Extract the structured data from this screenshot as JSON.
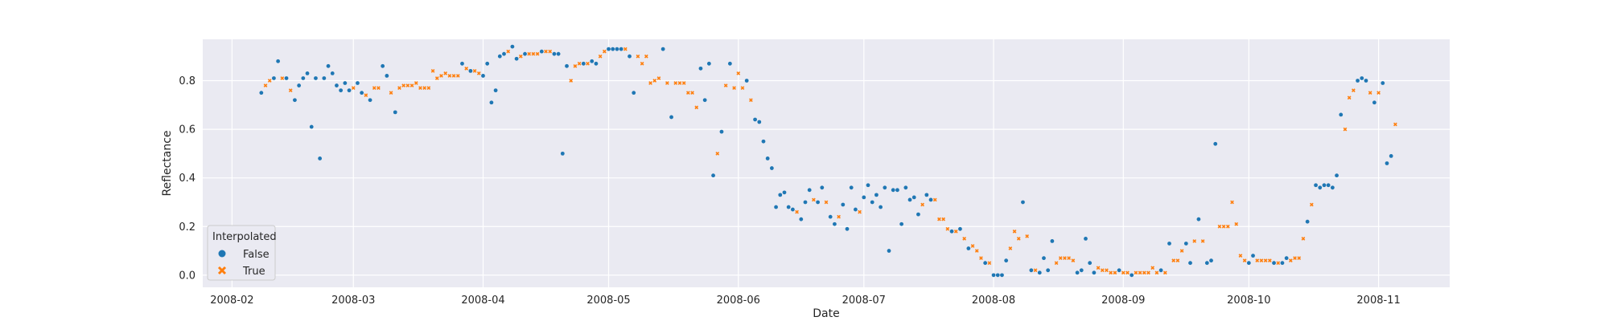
{
  "chart_data": {
    "type": "scatter",
    "xlabel": "Date",
    "ylabel": "Reflectance",
    "xlim": [
      "2008-01-25",
      "2008-11-18"
    ],
    "ylim": [
      -0.05,
      0.97
    ],
    "x_ticks": [
      "2008-02-01",
      "2008-03-01",
      "2008-04-01",
      "2008-05-01",
      "2008-06-01",
      "2008-07-01",
      "2008-08-01",
      "2008-09-01",
      "2008-10-01",
      "2008-11-01"
    ],
    "x_tick_labels": [
      "2008-02",
      "2008-03",
      "2008-04",
      "2008-05",
      "2008-06",
      "2008-07",
      "2008-08",
      "2008-09",
      "2008-10",
      "2008-11"
    ],
    "y_ticks": [
      0.0,
      0.2,
      0.4,
      0.6,
      0.8
    ],
    "y_tick_labels": [
      "0.0",
      "0.2",
      "0.4",
      "0.6",
      "0.8"
    ],
    "grid": true,
    "background": "#eaeaf2",
    "legend": {
      "title": "Interpolated",
      "placement": "lower-left",
      "entries": [
        {
          "label": "False",
          "marker": "circle",
          "color": "#1f77b4"
        },
        {
          "label": "True",
          "marker": "x",
          "color": "#ff7f0e"
        }
      ]
    },
    "series": [
      {
        "name": "False",
        "color": "#1f77b4",
        "marker": "circle",
        "points": [
          [
            "2008-02-08",
            0.75
          ],
          [
            "2008-02-11",
            0.81
          ],
          [
            "2008-02-12",
            0.88
          ],
          [
            "2008-02-14",
            0.81
          ],
          [
            "2008-02-16",
            0.72
          ],
          [
            "2008-02-17",
            0.78
          ],
          [
            "2008-02-18",
            0.81
          ],
          [
            "2008-02-19",
            0.83
          ],
          [
            "2008-02-20",
            0.61
          ],
          [
            "2008-02-21",
            0.81
          ],
          [
            "2008-02-22",
            0.48
          ],
          [
            "2008-02-23",
            0.81
          ],
          [
            "2008-02-24",
            0.86
          ],
          [
            "2008-02-25",
            0.83
          ],
          [
            "2008-02-26",
            0.78
          ],
          [
            "2008-02-27",
            0.76
          ],
          [
            "2008-02-28",
            0.79
          ],
          [
            "2008-02-29",
            0.76
          ],
          [
            "2008-03-02",
            0.79
          ],
          [
            "2008-03-03",
            0.75
          ],
          [
            "2008-03-05",
            0.72
          ],
          [
            "2008-03-08",
            0.86
          ],
          [
            "2008-03-09",
            0.82
          ],
          [
            "2008-03-11",
            0.67
          ],
          [
            "2008-03-27",
            0.87
          ],
          [
            "2008-03-29",
            0.84
          ],
          [
            "2008-04-01",
            0.82
          ],
          [
            "2008-04-02",
            0.87
          ],
          [
            "2008-04-03",
            0.71
          ],
          [
            "2008-04-04",
            0.76
          ],
          [
            "2008-04-05",
            0.9
          ],
          [
            "2008-04-06",
            0.91
          ],
          [
            "2008-04-08",
            0.94
          ],
          [
            "2008-04-09",
            0.89
          ],
          [
            "2008-04-11",
            0.91
          ],
          [
            "2008-04-15",
            0.92
          ],
          [
            "2008-04-18",
            0.91
          ],
          [
            "2008-04-19",
            0.91
          ],
          [
            "2008-04-20",
            0.5
          ],
          [
            "2008-04-21",
            0.86
          ],
          [
            "2008-04-25",
            0.87
          ],
          [
            "2008-04-27",
            0.88
          ],
          [
            "2008-04-28",
            0.87
          ],
          [
            "2008-05-01",
            0.93
          ],
          [
            "2008-05-02",
            0.93
          ],
          [
            "2008-05-03",
            0.93
          ],
          [
            "2008-05-04",
            0.93
          ],
          [
            "2008-05-06",
            0.9
          ],
          [
            "2008-05-07",
            0.75
          ],
          [
            "2008-05-14",
            0.93
          ],
          [
            "2008-05-16",
            0.65
          ],
          [
            "2008-05-23",
            0.85
          ],
          [
            "2008-05-24",
            0.72
          ],
          [
            "2008-05-25",
            0.87
          ],
          [
            "2008-05-26",
            0.41
          ],
          [
            "2008-05-28",
            0.59
          ],
          [
            "2008-05-30",
            0.87
          ],
          [
            "2008-06-03",
            0.8
          ],
          [
            "2008-06-05",
            0.64
          ],
          [
            "2008-06-06",
            0.63
          ],
          [
            "2008-06-07",
            0.55
          ],
          [
            "2008-06-08",
            0.48
          ],
          [
            "2008-06-09",
            0.44
          ],
          [
            "2008-06-10",
            0.28
          ],
          [
            "2008-06-11",
            0.33
          ],
          [
            "2008-06-12",
            0.34
          ],
          [
            "2008-06-13",
            0.28
          ],
          [
            "2008-06-14",
            0.27
          ],
          [
            "2008-06-16",
            0.23
          ],
          [
            "2008-06-17",
            0.3
          ],
          [
            "2008-06-18",
            0.35
          ],
          [
            "2008-06-20",
            0.3
          ],
          [
            "2008-06-21",
            0.36
          ],
          [
            "2008-06-23",
            0.24
          ],
          [
            "2008-06-24",
            0.21
          ],
          [
            "2008-06-26",
            0.29
          ],
          [
            "2008-06-27",
            0.19
          ],
          [
            "2008-06-28",
            0.36
          ],
          [
            "2008-06-29",
            0.27
          ],
          [
            "2008-07-01",
            0.32
          ],
          [
            "2008-07-02",
            0.37
          ],
          [
            "2008-07-03",
            0.3
          ],
          [
            "2008-07-04",
            0.33
          ],
          [
            "2008-07-05",
            0.28
          ],
          [
            "2008-07-06",
            0.36
          ],
          [
            "2008-07-07",
            0.1
          ],
          [
            "2008-07-08",
            0.35
          ],
          [
            "2008-07-09",
            0.35
          ],
          [
            "2008-07-10",
            0.21
          ],
          [
            "2008-07-11",
            0.36
          ],
          [
            "2008-07-12",
            0.31
          ],
          [
            "2008-07-13",
            0.32
          ],
          [
            "2008-07-14",
            0.25
          ],
          [
            "2008-07-16",
            0.33
          ],
          [
            "2008-07-17",
            0.31
          ],
          [
            "2008-07-22",
            0.18
          ],
          [
            "2008-07-24",
            0.19
          ],
          [
            "2008-07-26",
            0.11
          ],
          [
            "2008-07-30",
            0.05
          ],
          [
            "2008-08-01",
            0.0
          ],
          [
            "2008-08-02",
            0.0
          ],
          [
            "2008-08-03",
            0.0
          ],
          [
            "2008-08-04",
            0.06
          ],
          [
            "2008-08-08",
            0.3
          ],
          [
            "2008-08-10",
            0.02
          ],
          [
            "2008-08-12",
            0.01
          ],
          [
            "2008-08-13",
            0.07
          ],
          [
            "2008-08-14",
            0.02
          ],
          [
            "2008-08-15",
            0.14
          ],
          [
            "2008-08-21",
            0.01
          ],
          [
            "2008-08-22",
            0.02
          ],
          [
            "2008-08-23",
            0.15
          ],
          [
            "2008-08-24",
            0.05
          ],
          [
            "2008-08-25",
            0.01
          ],
          [
            "2008-08-31",
            0.02
          ],
          [
            "2008-09-03",
            0.0
          ],
          [
            "2008-09-10",
            0.02
          ],
          [
            "2008-09-12",
            0.13
          ],
          [
            "2008-09-16",
            0.13
          ],
          [
            "2008-09-17",
            0.05
          ],
          [
            "2008-09-19",
            0.23
          ],
          [
            "2008-09-21",
            0.05
          ],
          [
            "2008-09-22",
            0.06
          ],
          [
            "2008-09-23",
            0.54
          ],
          [
            "2008-10-01",
            0.05
          ],
          [
            "2008-10-02",
            0.08
          ],
          [
            "2008-10-07",
            0.05
          ],
          [
            "2008-10-09",
            0.05
          ],
          [
            "2008-10-10",
            0.07
          ],
          [
            "2008-10-15",
            0.22
          ],
          [
            "2008-10-17",
            0.37
          ],
          [
            "2008-10-18",
            0.36
          ],
          [
            "2008-10-19",
            0.37
          ],
          [
            "2008-10-20",
            0.37
          ],
          [
            "2008-10-21",
            0.36
          ],
          [
            "2008-10-22",
            0.41
          ],
          [
            "2008-10-23",
            0.66
          ],
          [
            "2008-10-27",
            0.8
          ],
          [
            "2008-10-28",
            0.81
          ],
          [
            "2008-10-29",
            0.8
          ],
          [
            "2008-10-31",
            0.71
          ],
          [
            "2008-11-02",
            0.79
          ],
          [
            "2008-11-03",
            0.46
          ],
          [
            "2008-11-04",
            0.49
          ]
        ]
      },
      {
        "name": "True",
        "color": "#ff7f0e",
        "marker": "x",
        "points": [
          [
            "2008-02-09",
            0.78
          ],
          [
            "2008-02-10",
            0.8
          ],
          [
            "2008-02-13",
            0.81
          ],
          [
            "2008-02-15",
            0.76
          ],
          [
            "2008-03-01",
            0.77
          ],
          [
            "2008-03-04",
            0.74
          ],
          [
            "2008-03-06",
            0.77
          ],
          [
            "2008-03-07",
            0.77
          ],
          [
            "2008-03-10",
            0.75
          ],
          [
            "2008-03-12",
            0.77
          ],
          [
            "2008-03-13",
            0.78
          ],
          [
            "2008-03-14",
            0.78
          ],
          [
            "2008-03-15",
            0.78
          ],
          [
            "2008-03-16",
            0.79
          ],
          [
            "2008-03-17",
            0.77
          ],
          [
            "2008-03-18",
            0.77
          ],
          [
            "2008-03-19",
            0.77
          ],
          [
            "2008-03-20",
            0.84
          ],
          [
            "2008-03-21",
            0.81
          ],
          [
            "2008-03-22",
            0.82
          ],
          [
            "2008-03-23",
            0.83
          ],
          [
            "2008-03-24",
            0.82
          ],
          [
            "2008-03-25",
            0.82
          ],
          [
            "2008-03-26",
            0.82
          ],
          [
            "2008-03-28",
            0.85
          ],
          [
            "2008-03-30",
            0.84
          ],
          [
            "2008-03-31",
            0.83
          ],
          [
            "2008-04-07",
            0.92
          ],
          [
            "2008-04-10",
            0.9
          ],
          [
            "2008-04-12",
            0.91
          ],
          [
            "2008-04-13",
            0.91
          ],
          [
            "2008-04-14",
            0.91
          ],
          [
            "2008-04-16",
            0.92
          ],
          [
            "2008-04-17",
            0.92
          ],
          [
            "2008-04-22",
            0.8
          ],
          [
            "2008-04-23",
            0.86
          ],
          [
            "2008-04-24",
            0.87
          ],
          [
            "2008-04-26",
            0.87
          ],
          [
            "2008-04-29",
            0.9
          ],
          [
            "2008-04-30",
            0.92
          ],
          [
            "2008-05-05",
            0.93
          ],
          [
            "2008-05-08",
            0.9
          ],
          [
            "2008-05-09",
            0.87
          ],
          [
            "2008-05-10",
            0.9
          ],
          [
            "2008-05-11",
            0.79
          ],
          [
            "2008-05-12",
            0.8
          ],
          [
            "2008-05-13",
            0.81
          ],
          [
            "2008-05-15",
            0.79
          ],
          [
            "2008-05-17",
            0.79
          ],
          [
            "2008-05-18",
            0.79
          ],
          [
            "2008-05-19",
            0.79
          ],
          [
            "2008-05-20",
            0.75
          ],
          [
            "2008-05-21",
            0.75
          ],
          [
            "2008-05-22",
            0.69
          ],
          [
            "2008-05-27",
            0.5
          ],
          [
            "2008-05-29",
            0.78
          ],
          [
            "2008-05-31",
            0.77
          ],
          [
            "2008-06-01",
            0.83
          ],
          [
            "2008-06-02",
            0.77
          ],
          [
            "2008-06-04",
            0.72
          ],
          [
            "2008-06-15",
            0.26
          ],
          [
            "2008-06-19",
            0.31
          ],
          [
            "2008-06-22",
            0.3
          ],
          [
            "2008-06-25",
            0.24
          ],
          [
            "2008-06-30",
            0.26
          ],
          [
            "2008-07-15",
            0.29
          ],
          [
            "2008-07-18",
            0.31
          ],
          [
            "2008-07-19",
            0.23
          ],
          [
            "2008-07-20",
            0.23
          ],
          [
            "2008-07-21",
            0.19
          ],
          [
            "2008-07-23",
            0.18
          ],
          [
            "2008-07-25",
            0.15
          ],
          [
            "2008-07-27",
            0.12
          ],
          [
            "2008-07-28",
            0.1
          ],
          [
            "2008-07-29",
            0.07
          ],
          [
            "2008-07-31",
            0.05
          ],
          [
            "2008-08-05",
            0.11
          ],
          [
            "2008-08-06",
            0.18
          ],
          [
            "2008-08-07",
            0.15
          ],
          [
            "2008-08-09",
            0.16
          ],
          [
            "2008-08-11",
            0.02
          ],
          [
            "2008-08-16",
            0.05
          ],
          [
            "2008-08-17",
            0.07
          ],
          [
            "2008-08-18",
            0.07
          ],
          [
            "2008-08-19",
            0.07
          ],
          [
            "2008-08-20",
            0.06
          ],
          [
            "2008-08-26",
            0.03
          ],
          [
            "2008-08-27",
            0.02
          ],
          [
            "2008-08-28",
            0.02
          ],
          [
            "2008-08-29",
            0.01
          ],
          [
            "2008-08-30",
            0.01
          ],
          [
            "2008-09-01",
            0.01
          ],
          [
            "2008-09-02",
            0.01
          ],
          [
            "2008-09-04",
            0.01
          ],
          [
            "2008-09-05",
            0.01
          ],
          [
            "2008-09-06",
            0.01
          ],
          [
            "2008-09-07",
            0.01
          ],
          [
            "2008-09-08",
            0.03
          ],
          [
            "2008-09-09",
            0.01
          ],
          [
            "2008-09-11",
            0.01
          ],
          [
            "2008-09-13",
            0.06
          ],
          [
            "2008-09-14",
            0.06
          ],
          [
            "2008-09-15",
            0.1
          ],
          [
            "2008-09-18",
            0.14
          ],
          [
            "2008-09-20",
            0.14
          ],
          [
            "2008-09-24",
            0.2
          ],
          [
            "2008-09-25",
            0.2
          ],
          [
            "2008-09-26",
            0.2
          ],
          [
            "2008-09-27",
            0.3
          ],
          [
            "2008-09-28",
            0.21
          ],
          [
            "2008-09-29",
            0.08
          ],
          [
            "2008-09-30",
            0.06
          ],
          [
            "2008-10-03",
            0.06
          ],
          [
            "2008-10-04",
            0.06
          ],
          [
            "2008-10-05",
            0.06
          ],
          [
            "2008-10-06",
            0.06
          ],
          [
            "2008-10-08",
            0.05
          ],
          [
            "2008-10-11",
            0.06
          ],
          [
            "2008-10-12",
            0.07
          ],
          [
            "2008-10-13",
            0.07
          ],
          [
            "2008-10-14",
            0.15
          ],
          [
            "2008-10-16",
            0.29
          ],
          [
            "2008-10-24",
            0.6
          ],
          [
            "2008-10-25",
            0.73
          ],
          [
            "2008-10-26",
            0.76
          ],
          [
            "2008-10-30",
            0.75
          ],
          [
            "2008-11-01",
            0.75
          ],
          [
            "2008-11-05",
            0.62
          ]
        ]
      }
    ]
  }
}
